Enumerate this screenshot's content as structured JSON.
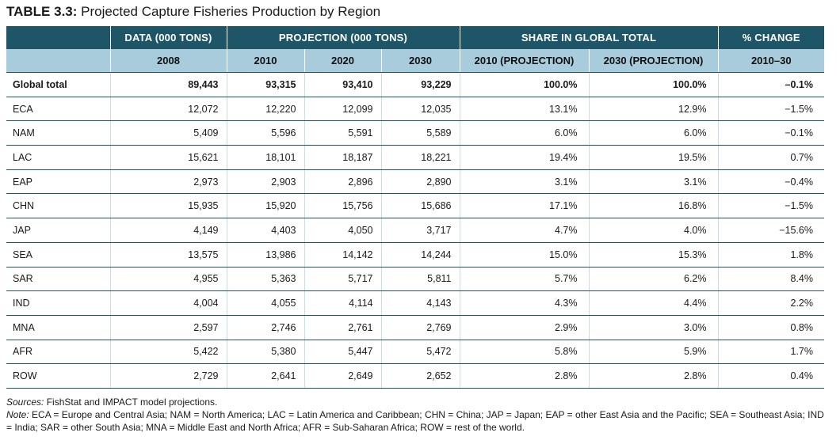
{
  "title": {
    "lead": "TABLE 3.3:",
    "text": "Projected Capture Fisheries Production by Region"
  },
  "header": {
    "groups": [
      "",
      "DATA (000 TONS)",
      "PROJECTION (000 TONS)",
      "SHARE IN GLOBAL TOTAL",
      "% CHANGE"
    ],
    "columns": [
      "",
      "2008",
      "2010",
      "2020",
      "2030",
      "2010 (PROJECTION)",
      "2030 (PROJECTION)",
      "2010–30"
    ]
  },
  "rows": [
    [
      "Global total",
      "89,443",
      "93,315",
      "93,410",
      "93,229",
      "100.0%",
      "100.0%",
      "–0.1%"
    ],
    [
      "ECA",
      "12,072",
      "12,220",
      "12,099",
      "12,035",
      "13.1%",
      "12.9%",
      "−1.5%"
    ],
    [
      "NAM",
      "5,409",
      "5,596",
      "5,591",
      "5,589",
      "6.0%",
      "6.0%",
      "−0.1%"
    ],
    [
      "LAC",
      "15,621",
      "18,101",
      "18,187",
      "18,221",
      "19.4%",
      "19.5%",
      "0.7%"
    ],
    [
      "EAP",
      "2,973",
      "2,903",
      "2,896",
      "2,890",
      "3.1%",
      "3.1%",
      "−0.4%"
    ],
    [
      "CHN",
      "15,935",
      "15,920",
      "15,756",
      "15,686",
      "17.1%",
      "16.8%",
      "−1.5%"
    ],
    [
      "JAP",
      "4,149",
      "4,403",
      "4,050",
      "3,717",
      "4.7%",
      "4.0%",
      "−15.6%"
    ],
    [
      "SEA",
      "13,575",
      "13,986",
      "14,142",
      "14,244",
      "15.0%",
      "15.3%",
      "1.8%"
    ],
    [
      "SAR",
      "4,955",
      "5,363",
      "5,717",
      "5,811",
      "5.7%",
      "6.2%",
      "8.4%"
    ],
    [
      "IND",
      "4,004",
      "4,055",
      "4,114",
      "4,143",
      "4.3%",
      "4.4%",
      "2.2%"
    ],
    [
      "MNA",
      "2,597",
      "2,746",
      "2,761",
      "2,769",
      "2.9%",
      "3.0%",
      "0.8%"
    ],
    [
      "AFR",
      "5,422",
      "5,380",
      "5,447",
      "5,472",
      "5.8%",
      "5.9%",
      "1.7%"
    ],
    [
      "ROW",
      "2,729",
      "2,641",
      "2,649",
      "2,652",
      "2.8%",
      "2.8%",
      "0.4%"
    ]
  ],
  "notes": {
    "sources_label": "Sources:",
    "sources_text": " FishStat and IMPACT model projections.",
    "note_label": "Note:",
    "note_text": " ECA = Europe and Central Asia; NAM = North America; LAC = Latin America and Caribbean; CHN = China; JAP = Japan; EAP = other East Asia and the Pacific; SEA = Southeast Asia; IND = India; SAR = other South Asia; MNA = Middle East and North Africa; AFR = Sub-Saharan Africa; ROW = rest of the world."
  },
  "colors": {
    "header_dark": "#1f5667",
    "header_light": "#a8ccdc"
  }
}
